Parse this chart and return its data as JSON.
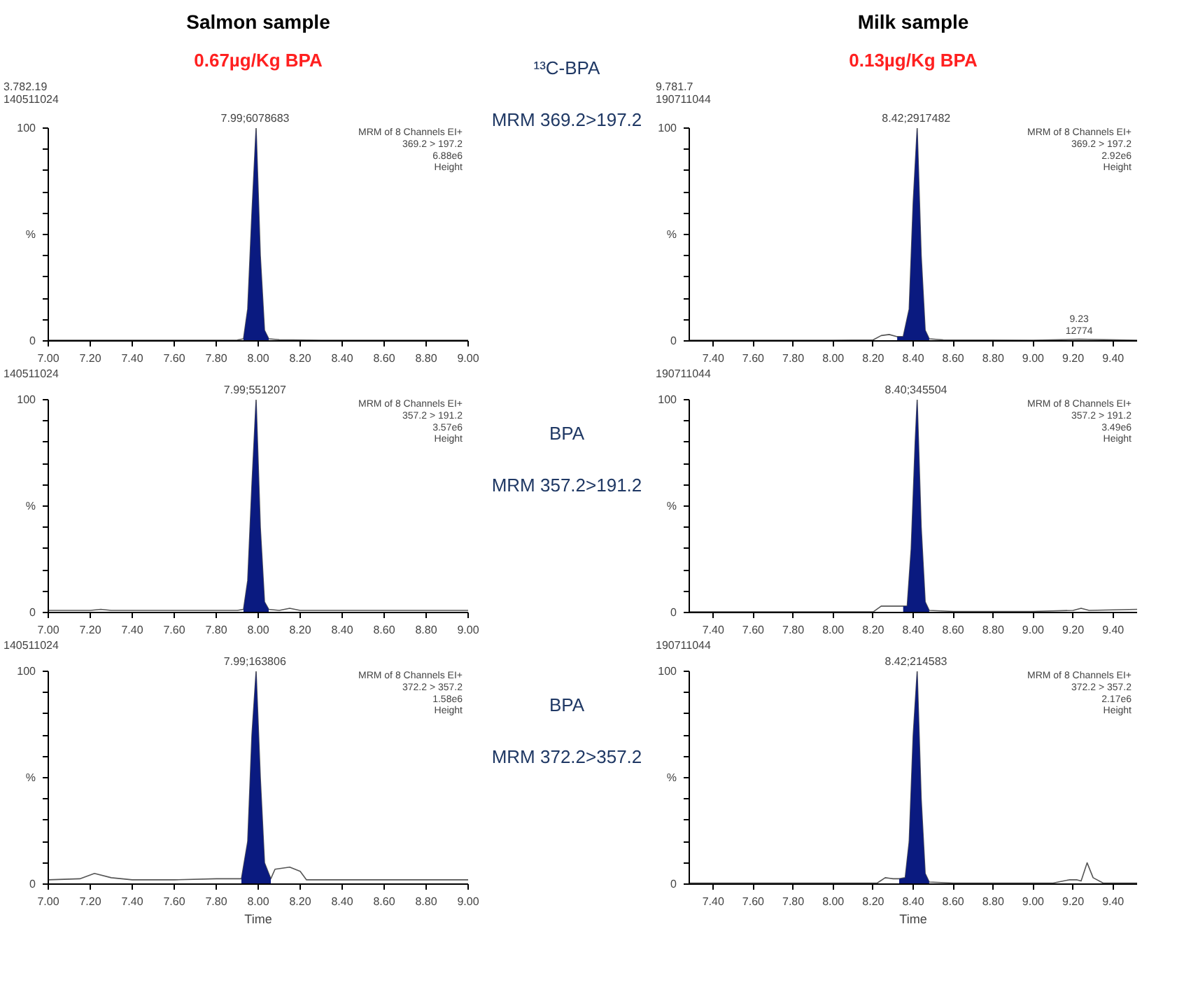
{
  "chart_data": [
    {
      "type": "line",
      "title": "Salmon sample",
      "subtitle": "0.67µg/Kg BPA",
      "grid": false,
      "xlim": [
        7.0,
        9.0
      ],
      "xticks": [
        {
          "value": 7.0,
          "label": "7.00"
        },
        {
          "value": 7.2,
          "label": "7.20"
        },
        {
          "value": 7.4,
          "label": "7.40"
        },
        {
          "value": 7.6,
          "label": "7.60"
        },
        {
          "value": 7.8,
          "label": "7.80"
        },
        {
          "value": 8.0,
          "label": "8.00"
        },
        {
          "value": 8.2,
          "label": "8.20"
        },
        {
          "value": 8.4,
          "label": "8.40"
        },
        {
          "value": 8.6,
          "label": "8.60"
        },
        {
          "value": 8.8,
          "label": "8.80"
        },
        {
          "value": 9.0,
          "label": "9.00"
        }
      ],
      "ylim": [
        0,
        100
      ],
      "yticks": [
        0,
        {
          "value": 10,
          "label": null
        },
        {
          "value": 20,
          "label": null
        },
        {
          "value": 30,
          "label": null
        },
        {
          "value": 40,
          "label": null
        },
        {
          "value": 50,
          "label": "%"
        },
        {
          "value": 60,
          "label": null
        },
        {
          "value": 70,
          "label": null
        },
        {
          "value": 80,
          "label": null
        },
        {
          "value": 90,
          "label": null
        },
        100
      ],
      "series": [
        {
          "color": "#555555",
          "x": [
            7.0,
            7.2,
            7.4,
            7.6,
            7.8,
            7.9,
            7.93,
            7.95,
            7.97,
            7.99,
            8.01,
            8.03,
            8.05,
            8.1,
            8.3,
            8.6,
            9.0
          ],
          "values": [
            0.3,
            0.3,
            0.3,
            0.3,
            0.3,
            0.4,
            1,
            15,
            60,
            100,
            40,
            5,
            1,
            0.6,
            0.3,
            0.3,
            0.3
          ]
        },
        {
          "type": "area",
          "color": "#0a1a80",
          "x": [
            7.93,
            7.95,
            7.97,
            7.99,
            8.01,
            8.03,
            8.05
          ],
          "values": [
            1,
            15,
            60,
            100,
            40,
            5,
            1
          ]
        }
      ],
      "annotations": [
        "3.782.19\n140511024",
        "MRM of 8 Channels EI+\n369.2 > 197.2\n6.88e6\nHeight",
        {
          "text": "7.99;6078683",
          "x": 7.99,
          "y": 100
        },
        "¹³C-BPA",
        "MRM 369.2>197.2"
      ]
    },
    {
      "type": "line",
      "title": "Milk sample",
      "subtitle": "0.13µg/Kg BPA",
      "grid": false,
      "xlim": [
        7.28,
        9.52
      ],
      "xticks": [
        {
          "value": 7.4,
          "label": "7.40"
        },
        {
          "value": 7.6,
          "label": "7.60"
        },
        {
          "value": 7.8,
          "label": "7.80"
        },
        {
          "value": 8.0,
          "label": "8.00"
        },
        {
          "value": 8.2,
          "label": "8.20"
        },
        {
          "value": 8.4,
          "label": "8.40"
        },
        {
          "value": 8.6,
          "label": "8.60"
        },
        {
          "value": 8.8,
          "label": "8.80"
        },
        {
          "value": 9.0,
          "label": "9.00"
        },
        {
          "value": 9.2,
          "label": "9.20"
        },
        {
          "value": 9.4,
          "label": "9.40"
        }
      ],
      "ylim": [
        0,
        100
      ],
      "yticks": [
        0,
        {
          "value": 10,
          "label": null
        },
        {
          "value": 20,
          "label": null
        },
        {
          "value": 30,
          "label": null
        },
        {
          "value": 40,
          "label": null
        },
        {
          "value": 50,
          "label": "%"
        },
        {
          "value": 60,
          "label": null
        },
        {
          "value": 70,
          "label": null
        },
        {
          "value": 80,
          "label": null
        },
        {
          "value": 90,
          "label": null
        },
        100
      ],
      "series": [
        {
          "color": "#555555",
          "x": [
            7.28,
            7.6,
            8.0,
            8.2,
            8.24,
            8.28,
            8.32,
            8.35,
            8.38,
            8.4,
            8.42,
            8.44,
            8.46,
            8.48,
            8.55,
            9.0,
            9.23,
            9.52
          ],
          "values": [
            0.3,
            0.3,
            0.3,
            0.5,
            2.5,
            3,
            2,
            2,
            15,
            65,
            100,
            40,
            5,
            1,
            0.5,
            0.3,
            0.8,
            0.3
          ]
        },
        {
          "type": "area",
          "color": "#0a1a80",
          "x": [
            8.32,
            8.35,
            8.38,
            8.4,
            8.42,
            8.44,
            8.46,
            8.48
          ],
          "values": [
            2,
            2,
            15,
            65,
            100,
            40,
            5,
            1
          ]
        }
      ],
      "annotations": [
        "9.781.7\n190711044",
        "MRM of 8 Channels EI+\n369.2 > 197.2\n2.92e6\nHeight",
        {
          "text": "8.42;2917482",
          "x": 8.42,
          "y": 100
        },
        {
          "text": "9.23\n12774",
          "x": 9.23,
          "y": 0.8
        }
      ]
    },
    {
      "type": "line",
      "grid": false,
      "xlim": [
        7.0,
        9.0
      ],
      "xticks": [
        {
          "value": 7.0,
          "label": "7.00"
        },
        {
          "value": 7.2,
          "label": "7.20"
        },
        {
          "value": 7.4,
          "label": "7.40"
        },
        {
          "value": 7.6,
          "label": "7.60"
        },
        {
          "value": 7.8,
          "label": "7.80"
        },
        {
          "value": 8.0,
          "label": "8.00"
        },
        {
          "value": 8.2,
          "label": "8.20"
        },
        {
          "value": 8.4,
          "label": "8.40"
        },
        {
          "value": 8.6,
          "label": "8.60"
        },
        {
          "value": 8.8,
          "label": "8.80"
        },
        {
          "value": 9.0,
          "label": "9.00"
        }
      ],
      "ylim": [
        0,
        100
      ],
      "yticks": [
        0,
        {
          "value": 10,
          "label": null
        },
        {
          "value": 20,
          "label": null
        },
        {
          "value": 30,
          "label": null
        },
        {
          "value": 40,
          "label": null
        },
        {
          "value": 50,
          "label": "%"
        },
        {
          "value": 60,
          "label": null
        },
        {
          "value": 70,
          "label": null
        },
        {
          "value": 80,
          "label": null
        },
        {
          "value": 90,
          "label": null
        },
        100
      ],
      "series": [
        {
          "color": "#555555",
          "x": [
            7.0,
            7.2,
            7.25,
            7.3,
            7.6,
            7.9,
            7.93,
            7.95,
            7.97,
            7.99,
            8.01,
            8.03,
            8.05,
            8.1,
            8.15,
            8.2,
            8.6,
            9.0
          ],
          "values": [
            1,
            1,
            1.5,
            1,
            1,
            1,
            1.5,
            15,
            60,
            100,
            40,
            5,
            1.5,
            1,
            2,
            1,
            1,
            1
          ]
        },
        {
          "type": "area",
          "color": "#0a1a80",
          "x": [
            7.93,
            7.95,
            7.97,
            7.99,
            8.01,
            8.03,
            8.05
          ],
          "values": [
            1.5,
            15,
            60,
            100,
            40,
            5,
            1.5
          ]
        }
      ],
      "annotations": [
        "140511024",
        "MRM of 8 Channels EI+\n357.2 > 191.2\n3.57e6\nHeight",
        {
          "text": "7.99;551207",
          "x": 7.99,
          "y": 100
        },
        "BPA",
        "MRM 357.2>191.2"
      ]
    },
    {
      "type": "line",
      "grid": false,
      "xlim": [
        7.28,
        9.52
      ],
      "xticks": [
        {
          "value": 7.4,
          "label": "7.40"
        },
        {
          "value": 7.6,
          "label": "7.60"
        },
        {
          "value": 7.8,
          "label": "7.80"
        },
        {
          "value": 8.0,
          "label": "8.00"
        },
        {
          "value": 8.2,
          "label": "8.20"
        },
        {
          "value": 8.4,
          "label": "8.40"
        },
        {
          "value": 8.6,
          "label": "8.60"
        },
        {
          "value": 8.8,
          "label": "8.80"
        },
        {
          "value": 9.0,
          "label": "9.00"
        },
        {
          "value": 9.2,
          "label": "9.20"
        },
        {
          "value": 9.4,
          "label": "9.40"
        }
      ],
      "ylim": [
        0,
        100
      ],
      "yticks": [
        0,
        {
          "value": 10,
          "label": null
        },
        {
          "value": 20,
          "label": null
        },
        {
          "value": 30,
          "label": null
        },
        {
          "value": 40,
          "label": null
        },
        {
          "value": 50,
          "label": "%"
        },
        {
          "value": 60,
          "label": null
        },
        {
          "value": 70,
          "label": null
        },
        {
          "value": 80,
          "label": null
        },
        {
          "value": 90,
          "label": null
        },
        100
      ],
      "series": [
        {
          "color": "#555555",
          "x": [
            7.28,
            7.8,
            8.2,
            8.24,
            8.3,
            8.35,
            8.37,
            8.39,
            8.41,
            8.42,
            8.44,
            8.46,
            8.48,
            8.6,
            9.0,
            9.2,
            9.24,
            9.28,
            9.52
          ],
          "values": [
            0.3,
            0.3,
            0.3,
            3,
            3,
            3,
            3,
            30,
            80,
            100,
            40,
            5,
            1,
            0.5,
            0.5,
            1,
            2,
            1,
            1.5
          ]
        },
        {
          "type": "area",
          "color": "#0a1a80",
          "x": [
            8.35,
            8.37,
            8.39,
            8.41,
            8.42,
            8.44,
            8.46,
            8.48
          ],
          "values": [
            3,
            3,
            30,
            80,
            100,
            40,
            5,
            1
          ]
        }
      ],
      "annotations": [
        "190711044",
        "MRM of 8 Channels EI+\n357.2 > 191.2\n3.49e6\nHeight",
        {
          "text": "8.40;345504",
          "x": 8.42,
          "y": 100
        }
      ]
    },
    {
      "type": "line",
      "xlabel": "Time",
      "grid": false,
      "xlim": [
        7.0,
        9.0
      ],
      "xticks": [
        {
          "value": 7.0,
          "label": "7.00"
        },
        {
          "value": 7.2,
          "label": "7.20"
        },
        {
          "value": 7.4,
          "label": "7.40"
        },
        {
          "value": 7.6,
          "label": "7.60"
        },
        {
          "value": 7.8,
          "label": "7.80"
        },
        {
          "value": 8.0,
          "label": "8.00"
        },
        {
          "value": 8.2,
          "label": "8.20"
        },
        {
          "value": 8.4,
          "label": "8.40"
        },
        {
          "value": 8.6,
          "label": "8.60"
        },
        {
          "value": 8.8,
          "label": "8.80"
        },
        {
          "value": 9.0,
          "label": "9.00"
        }
      ],
      "ylim": [
        0,
        100
      ],
      "yticks": [
        0,
        {
          "value": 10,
          "label": null
        },
        {
          "value": 20,
          "label": null
        },
        {
          "value": 30,
          "label": null
        },
        {
          "value": 40,
          "label": null
        },
        {
          "value": 50,
          "label": "%"
        },
        {
          "value": 60,
          "label": null
        },
        {
          "value": 70,
          "label": null
        },
        {
          "value": 80,
          "label": null
        },
        {
          "value": 90,
          "label": null
        },
        100
      ],
      "series": [
        {
          "color": "#555555",
          "x": [
            7.0,
            7.15,
            7.22,
            7.3,
            7.4,
            7.6,
            7.8,
            7.92,
            7.95,
            7.97,
            7.99,
            8.01,
            8.03,
            8.06,
            8.08,
            8.15,
            8.2,
            8.23,
            8.4,
            8.7,
            9.0
          ],
          "values": [
            2,
            2.5,
            5,
            3,
            2,
            2,
            2.5,
            2.5,
            20,
            70,
            100,
            50,
            10,
            2.5,
            7,
            8,
            6,
            2,
            2,
            2,
            2
          ]
        },
        {
          "type": "area",
          "color": "#0a1a80",
          "x": [
            7.92,
            7.95,
            7.97,
            7.99,
            8.01,
            8.03,
            8.06
          ],
          "values": [
            2.5,
            20,
            70,
            100,
            50,
            10,
            2.5
          ]
        }
      ],
      "annotations": [
        "140511024",
        "MRM of 8 Channels EI+\n372.2 > 357.2\n1.58e6\nHeight",
        {
          "text": "7.99;163806",
          "x": 7.99,
          "y": 100
        },
        "BPA",
        "MRM 372.2>357.2"
      ]
    },
    {
      "type": "line",
      "xlabel": "Time",
      "grid": false,
      "xlim": [
        7.28,
        9.52
      ],
      "xticks": [
        {
          "value": 7.4,
          "label": "7.40"
        },
        {
          "value": 7.6,
          "label": "7.60"
        },
        {
          "value": 7.8,
          "label": "7.80"
        },
        {
          "value": 8.0,
          "label": "8.00"
        },
        {
          "value": 8.2,
          "label": "8.20"
        },
        {
          "value": 8.4,
          "label": "8.40"
        },
        {
          "value": 8.6,
          "label": "8.60"
        },
        {
          "value": 8.8,
          "label": "8.80"
        },
        {
          "value": 9.0,
          "label": "9.00"
        },
        {
          "value": 9.2,
          "label": "9.20"
        },
        {
          "value": 9.4,
          "label": "9.40"
        }
      ],
      "ylim": [
        0,
        100
      ],
      "yticks": [
        0,
        {
          "value": 10,
          "label": null
        },
        {
          "value": 20,
          "label": null
        },
        {
          "value": 30,
          "label": null
        },
        {
          "value": 40,
          "label": null
        },
        {
          "value": 50,
          "label": "%"
        },
        {
          "value": 60,
          "label": null
        },
        {
          "value": 70,
          "label": null
        },
        {
          "value": 80,
          "label": null
        },
        {
          "value": 90,
          "label": null
        },
        100
      ],
      "series": [
        {
          "color": "#555555",
          "x": [
            7.28,
            7.8,
            8.22,
            8.26,
            8.3,
            8.33,
            8.36,
            8.38,
            8.4,
            8.42,
            8.44,
            8.46,
            8.48,
            8.6,
            9.1,
            9.18,
            9.22,
            9.24,
            9.27,
            9.3,
            9.35,
            9.52
          ],
          "values": [
            0.5,
            0.5,
            0.5,
            3,
            2.5,
            2.5,
            3,
            20,
            70,
            100,
            40,
            5,
            1,
            0.5,
            0.5,
            2,
            2,
            1.5,
            10,
            3,
            0.5,
            0.5
          ]
        },
        {
          "type": "area",
          "color": "#0a1a80",
          "x": [
            8.33,
            8.36,
            8.38,
            8.4,
            8.42,
            8.44,
            8.46,
            8.48
          ],
          "values": [
            2.5,
            3,
            20,
            70,
            100,
            40,
            5,
            1
          ]
        }
      ],
      "annotations": [
        "190711044",
        "MRM of 8 Channels EI+\n372.2 > 357.2\n2.17e6\nHeight",
        {
          "text": "8.42;214583",
          "x": 8.42,
          "y": 100
        }
      ]
    }
  ]
}
